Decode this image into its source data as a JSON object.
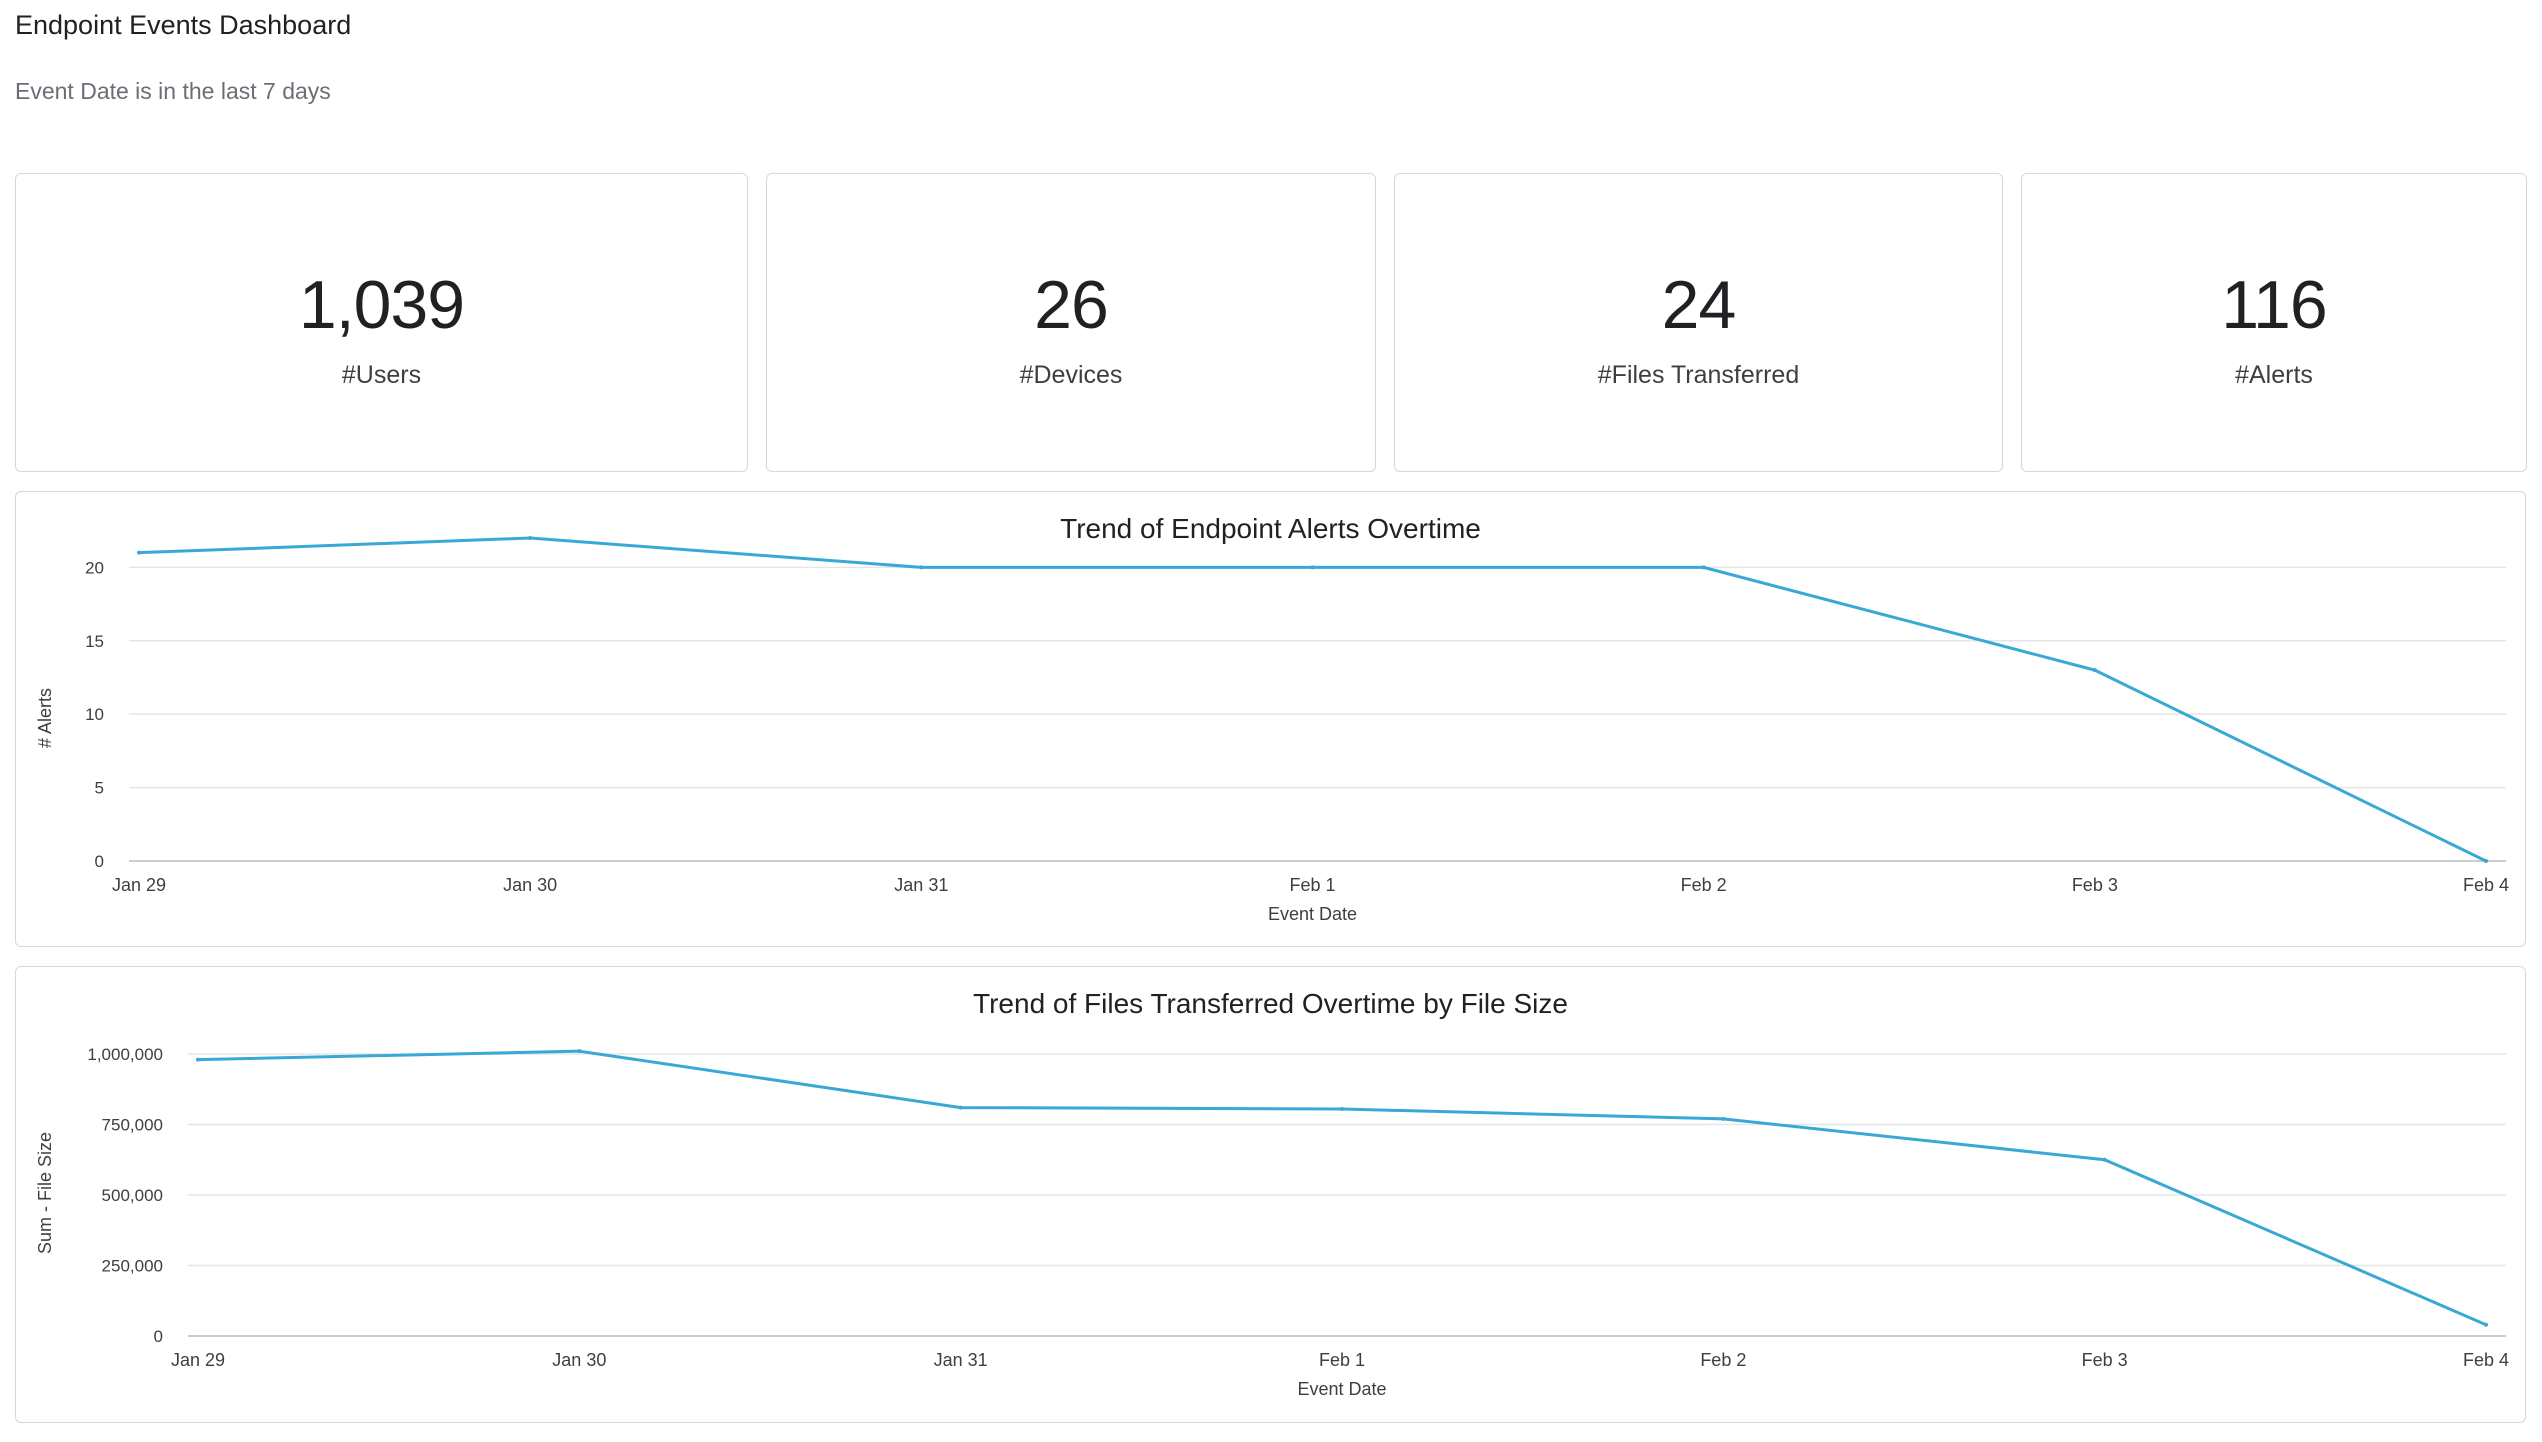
{
  "dashboard": {
    "title": "Endpoint Events Dashboard",
    "filter_text": "Event Date is in the last 7 days"
  },
  "kpis": [
    {
      "value": "1,039",
      "label": "#Users"
    },
    {
      "value": "26",
      "label": "#Devices"
    },
    {
      "value": "24",
      "label": "#Files Transferred"
    },
    {
      "value": "116",
      "label": "#Alerts"
    }
  ],
  "colors": {
    "line": "#3aa8d4",
    "grid": "#e4e6e8",
    "axis": "#c6cdd3"
  },
  "chart_data": [
    {
      "type": "line",
      "title": "Trend of Endpoint Alerts Overtime",
      "xlabel": "Event Date",
      "ylabel": "# Alerts",
      "categories": [
        "Jan 29",
        "Jan 30",
        "Jan 31",
        "Feb 1",
        "Feb 2",
        "Feb 3",
        "Feb 4"
      ],
      "series": [
        {
          "values": [
            21,
            22,
            20,
            20,
            20,
            13,
            0
          ]
        }
      ],
      "ylim": [
        0,
        22
      ],
      "yticks": [
        0,
        5,
        10,
        15,
        20
      ],
      "ytick_labels": [
        "0",
        "5",
        "10",
        "15",
        "20"
      ],
      "grid": true
    },
    {
      "type": "line",
      "title": "Trend of Files Transferred Overtime by File Size",
      "xlabel": "Event Date",
      "ylabel": "Sum - File Size",
      "categories": [
        "Jan 29",
        "Jan 30",
        "Jan 31",
        "Feb 1",
        "Feb 2",
        "Feb 3",
        "Feb 4"
      ],
      "series": [
        {
          "values": [
            980000,
            1010000,
            810000,
            805000,
            770000,
            625000,
            40000
          ]
        }
      ],
      "ylim": [
        0,
        1000000
      ],
      "yticks": [
        0,
        250000,
        500000,
        750000,
        1000000
      ],
      "ytick_labels": [
        "0",
        "250,000",
        "500,000",
        "750,000",
        "1,000,000"
      ],
      "grid": true
    }
  ]
}
